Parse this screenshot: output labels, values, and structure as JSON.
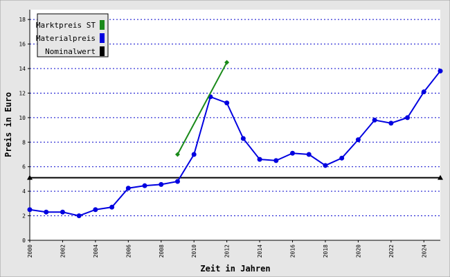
{
  "chart_data": {
    "type": "line",
    "x_label": "Zeit in Jahren",
    "y_label": "Preis in Euro",
    "xlim": [
      2000,
      2025
    ],
    "xticks": [
      2000,
      2002,
      2004,
      2006,
      2008,
      2010,
      2012,
      2014,
      2016,
      2018,
      2020,
      2022,
      2024
    ],
    "ylim": [
      0,
      18.8
    ],
    "yticks": [
      0,
      2,
      4,
      6,
      8,
      10,
      12,
      14,
      16,
      18
    ],
    "grid": true,
    "legend": "upper left",
    "series": [
      {
        "name": "Marktpreis ST",
        "color": "#1a8a1a",
        "marker": "diamond",
        "x": [
          2009,
          2012
        ],
        "values": [
          7.0,
          14.5
        ]
      },
      {
        "name": "Materialpreis",
        "color": "#0000e0",
        "marker": "circle",
        "x": [
          2000,
          2001,
          2002,
          2003,
          2004,
          2005,
          2006,
          2007,
          2008,
          2009,
          2010,
          2011,
          2012,
          2013,
          2014,
          2015,
          2016,
          2017,
          2018,
          2019,
          2020,
          2021,
          2022,
          2023,
          2024,
          2025
        ],
        "values": [
          2.5,
          2.3,
          2.3,
          2.0,
          2.5,
          2.7,
          4.25,
          4.45,
          4.55,
          4.8,
          7.0,
          11.7,
          11.2,
          8.3,
          6.6,
          6.5,
          7.1,
          7.0,
          6.1,
          6.7,
          8.2,
          9.8,
          9.55,
          10.0,
          12.1,
          13.8
        ]
      },
      {
        "name": "Nominalwert",
        "color": "#000000",
        "marker": "triangle",
        "x": [
          2000,
          2025
        ],
        "values": [
          5.1,
          5.1
        ]
      }
    ]
  }
}
